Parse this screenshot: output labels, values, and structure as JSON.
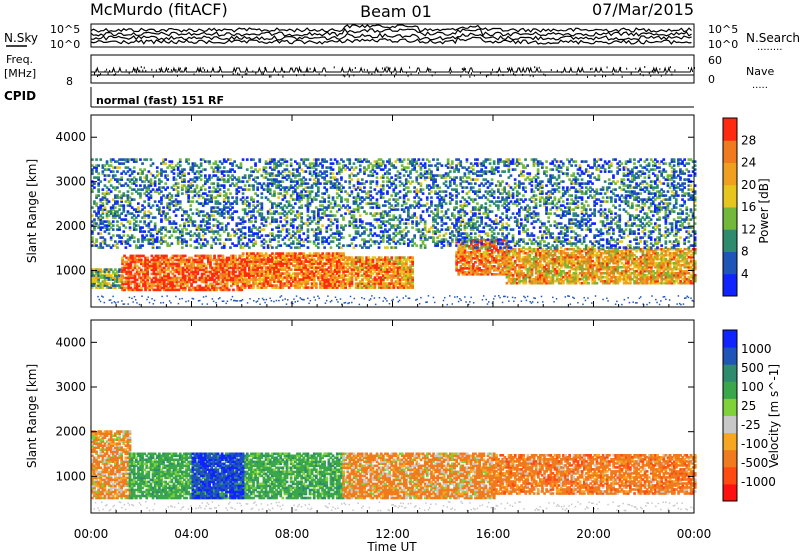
{
  "header": {
    "station": "McMurdo (fitACF)",
    "beam": "Beam 01",
    "date": "07/Mar/2015"
  },
  "left_labels": {
    "nsky": "N.Sky",
    "freq_line1": "Freq.",
    "freq_line2": "[MHz]",
    "cpid": "CPID"
  },
  "right_labels": {
    "nsearch": "N.Search",
    "nsearch_dots": "........",
    "nave": "Nave",
    "nave_dots": "....."
  },
  "noise_axis": {
    "left_top": "10^5",
    "left_bottom": "10^0",
    "right_top": "10^5",
    "right_bottom": "10^0"
  },
  "freq_axis": {
    "left_top": "8",
    "right_top": "60",
    "right_bottom": "0"
  },
  "cpid_text": "normal (fast) 151 RF",
  "x_axis": {
    "label": "Time UT",
    "ticks": [
      "00:00",
      "04:00",
      "08:00",
      "12:00",
      "16:00",
      "20:00",
      "00:00"
    ],
    "range_hours": [
      0,
      24
    ]
  },
  "colors": {
    "power": [
      "#1024ff",
      "#1f55b6",
      "#2e8b6e",
      "#72b83a",
      "#e6c61e",
      "#f0a020",
      "#f07a1e",
      "#ff2a10"
    ],
    "velocity": [
      "#ff1010",
      "#ff4a12",
      "#f07a1e",
      "#f5a623",
      "#c8c8c8",
      "#7fd23a",
      "#3aa84a",
      "#2e8b6e",
      "#1f55b6",
      "#1024ff"
    ]
  },
  "chart_data": [
    {
      "type": "heatmap",
      "title": "Power",
      "xlabel": "",
      "ylabel": "Slant Range [km]",
      "xlim": [
        0,
        24
      ],
      "ylim": [
        180,
        4500
      ],
      "yticks": [
        1000,
        2000,
        3000,
        4000
      ],
      "colorbar": {
        "label": "Power [dB]",
        "ticks": [
          4,
          8,
          12,
          16,
          20,
          24,
          28
        ],
        "range": [
          0,
          30
        ]
      },
      "rows": [
        {
          "x": [
            0,
            1.2
          ],
          "range": [
            600,
            1050
          ],
          "value": 12
        },
        {
          "x": [
            1.2,
            6
          ],
          "range": [
            550,
            1350
          ],
          "value": 26
        },
        {
          "x": [
            6,
            10
          ],
          "range": [
            600,
            1400
          ],
          "value": 24
        },
        {
          "x": [
            10,
            12.8
          ],
          "range": [
            600,
            1300
          ],
          "value": 22
        },
        {
          "x": [
            14.5,
            16.5
          ],
          "range": [
            900,
            1700
          ],
          "value": 24
        },
        {
          "x": [
            16.5,
            24
          ],
          "range": [
            700,
            1500
          ],
          "value": 20
        },
        {
          "x": [
            0,
            24
          ],
          "range": [
            1500,
            3500
          ],
          "value": 8
        }
      ]
    },
    {
      "type": "heatmap",
      "title": "Velocity",
      "xlabel": "Time UT",
      "ylabel": "Slant Range [km]",
      "xlim": [
        0,
        24
      ],
      "ylim": [
        180,
        4500
      ],
      "yticks": [
        1000,
        2000,
        3000,
        4000
      ],
      "colorbar": {
        "label": "Velocity [m s^-1]",
        "ticks": [
          1000,
          500,
          100,
          25,
          -25,
          -100,
          -500,
          -1000
        ]
      },
      "rows": [
        {
          "x": [
            0,
            1.5
          ],
          "range": [
            500,
            2000
          ],
          "value": -100
        },
        {
          "x": [
            1.5,
            10
          ],
          "range": [
            500,
            1500
          ],
          "value": 200
        },
        {
          "x": [
            4,
            6
          ],
          "range": [
            500,
            1500
          ],
          "value": 800
        },
        {
          "x": [
            10,
            16
          ],
          "range": [
            500,
            1500
          ],
          "value": -100
        },
        {
          "x": [
            16,
            24
          ],
          "range": [
            600,
            1500
          ],
          "value": -150
        }
      ]
    }
  ]
}
